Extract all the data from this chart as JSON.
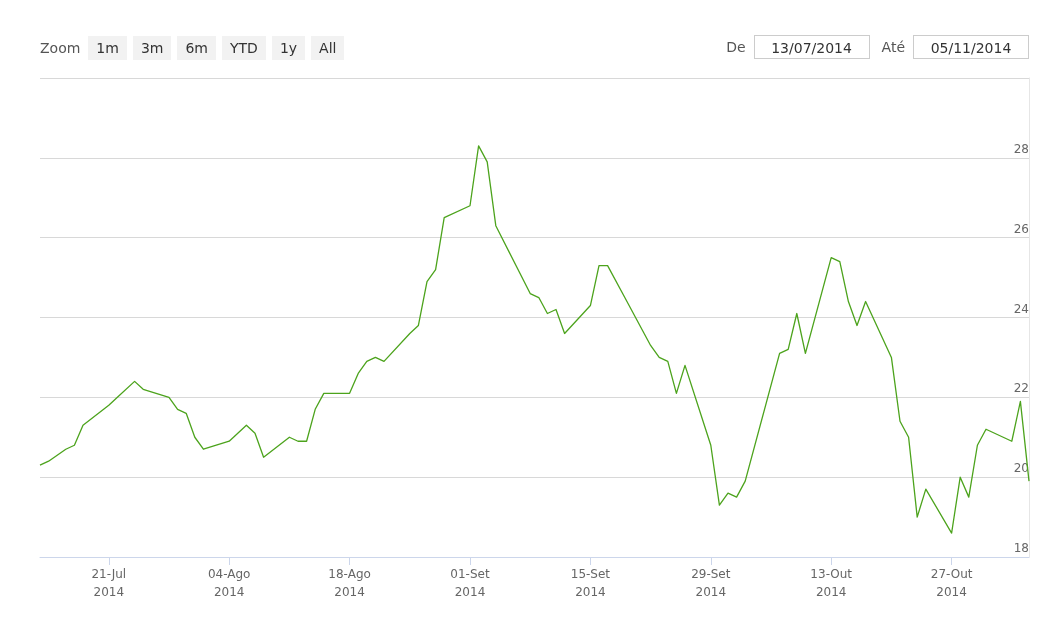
{
  "chart_data": {
    "type": "line",
    "annotations": [
      "Zoom",
      "1m",
      "3m",
      "6m",
      "YTD",
      "1y",
      "All",
      "De",
      "13/07/2014",
      "Até",
      "05/11/2014"
    ],
    "x": [
      "2014-07-13",
      "2014-07-14",
      "2014-07-16",
      "2014-07-17",
      "2014-07-18",
      "2014-07-21",
      "2014-07-22",
      "2014-07-24",
      "2014-07-25",
      "2014-07-28",
      "2014-07-29",
      "2014-07-30",
      "2014-07-31",
      "2014-08-01",
      "2014-08-04",
      "2014-08-05",
      "2014-08-06",
      "2014-08-07",
      "2014-08-08",
      "2014-08-11",
      "2014-08-12",
      "2014-08-13",
      "2014-08-14",
      "2014-08-15",
      "2014-08-18",
      "2014-08-19",
      "2014-08-20",
      "2014-08-21",
      "2014-08-22",
      "2014-08-25",
      "2014-08-26",
      "2014-08-27",
      "2014-08-28",
      "2014-08-29",
      "2014-09-01",
      "2014-09-02",
      "2014-09-03",
      "2014-09-04",
      "2014-09-08",
      "2014-09-09",
      "2014-09-10",
      "2014-09-11",
      "2014-09-12",
      "2014-09-15",
      "2014-09-16",
      "2014-09-17",
      "2014-09-19",
      "2014-09-22",
      "2014-09-23",
      "2014-09-24",
      "2014-09-25",
      "2014-09-26",
      "2014-09-29",
      "2014-09-30",
      "2014-10-01",
      "2014-10-02",
      "2014-10-03",
      "2014-10-07",
      "2014-10-08",
      "2014-10-09",
      "2014-10-10",
      "2014-10-13",
      "2014-10-14",
      "2014-10-15",
      "2014-10-16",
      "2014-10-17",
      "2014-10-20",
      "2014-10-21",
      "2014-10-22",
      "2014-10-23",
      "2014-10-24",
      "2014-10-27",
      "2014-10-28",
      "2014-10-29",
      "2014-10-30",
      "2014-10-31",
      "2014-11-03",
      "2014-11-04",
      "2014-11-05"
    ],
    "series": [
      {
        "color": "#4ca31c",
        "values": [
          20.3,
          20.4,
          20.7,
          20.8,
          21.3,
          21.8,
          22.0,
          22.4,
          22.2,
          22.0,
          21.7,
          21.6,
          21.0,
          20.7,
          20.9,
          21.1,
          21.3,
          21.1,
          20.5,
          21.0,
          20.9,
          20.9,
          21.7,
          22.1,
          22.1,
          22.6,
          22.9,
          23.0,
          22.9,
          23.6,
          23.8,
          24.9,
          25.2,
          26.5,
          26.8,
          28.3,
          27.9,
          26.3,
          24.6,
          24.5,
          24.1,
          24.2,
          23.6,
          24.3,
          25.3,
          25.3,
          24.5,
          23.3,
          23.0,
          22.9,
          22.1,
          22.8,
          20.8,
          19.3,
          19.6,
          19.5,
          19.9,
          23.1,
          23.2,
          24.1,
          23.1,
          25.5,
          25.4,
          24.4,
          23.8,
          24.4,
          23.0,
          21.4,
          21.0,
          19.0,
          19.7,
          18.6,
          20.0,
          19.5,
          20.8,
          21.2,
          20.9,
          21.9,
          19.9
        ]
      }
    ],
    "xlim": [
      "2014-07-13",
      "2014-11-05"
    ],
    "xticks": [
      {
        "value": "2014-07-21",
        "label": "21-Jul\n2014"
      },
      {
        "value": "2014-08-04",
        "label": "04-Ago\n2014"
      },
      {
        "value": "2014-08-18",
        "label": "18-Ago\n2014"
      },
      {
        "value": "2014-09-01",
        "label": "01-Set\n2014"
      },
      {
        "value": "2014-09-15",
        "label": "15-Set\n2014"
      },
      {
        "value": "2014-09-29",
        "label": "29-Set\n2014"
      },
      {
        "value": "2014-10-13",
        "label": "13-Out\n2014"
      },
      {
        "value": "2014-10-27",
        "label": "27-Out\n2014"
      }
    ],
    "ylim": [
      18,
      30
    ],
    "yticks": [
      18,
      20,
      22,
      24,
      26,
      28,
      {
        "value": 30,
        "label": null
      }
    ],
    "grid": "y",
    "marker": "none",
    "line_style": "solid"
  }
}
